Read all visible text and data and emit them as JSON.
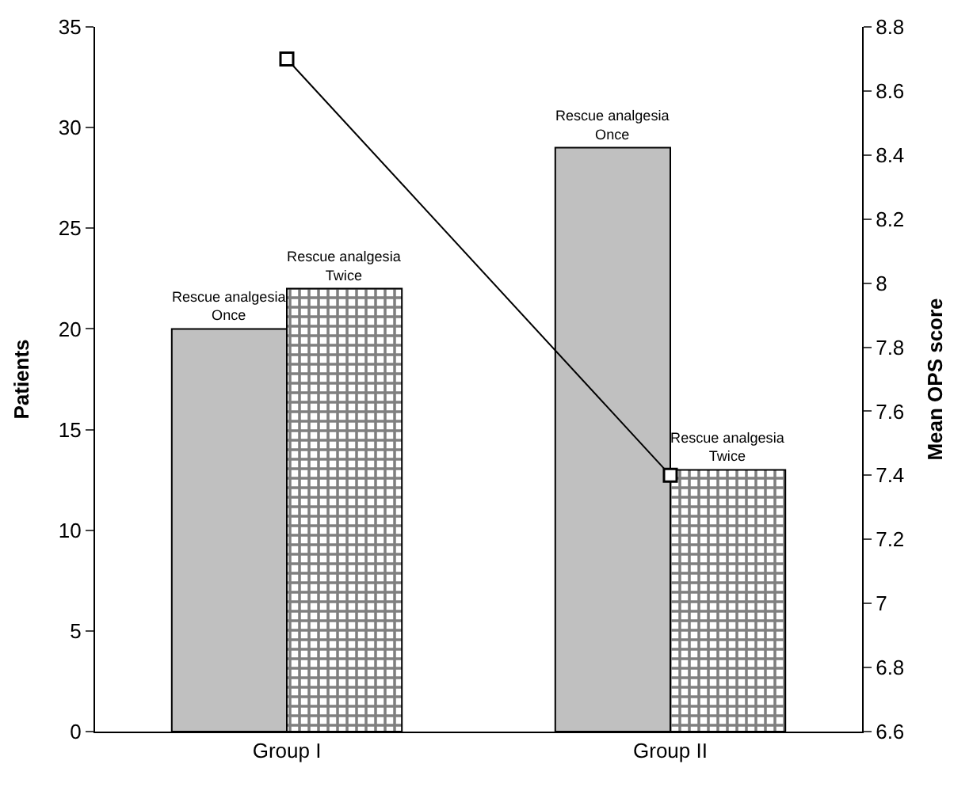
{
  "chart_data": {
    "type": "bar",
    "categories": [
      "Group I",
      "Group II"
    ],
    "ylabel": "Patients",
    "y2label": "Mean OPS score",
    "series": [
      {
        "name": "Rescue analgesia\nOnce",
        "color": "#c0c0c0",
        "values": [
          20,
          29
        ]
      },
      {
        "name": "Rescue analgesia\nTwice",
        "color": "#000000",
        "values": [
          22,
          13
        ]
      },
      {
        "type": "line",
        "axis": "y2",
        "color": "#000000",
        "values": [
          8.7,
          7.4
        ]
      }
    ],
    "ylim": [
      0,
      35
    ],
    "yticks": [
      0,
      5,
      10,
      15,
      20,
      25,
      30,
      35
    ],
    "y2lim": [
      6.6,
      8.8
    ],
    "y2ticks": [
      6.6,
      6.8,
      7,
      7.2,
      7.4,
      7.6,
      7.8,
      8,
      8.2,
      8.4,
      8.6,
      8.8
    ],
    "legend": false,
    "marker": "square",
    "line_style": "solid"
  }
}
